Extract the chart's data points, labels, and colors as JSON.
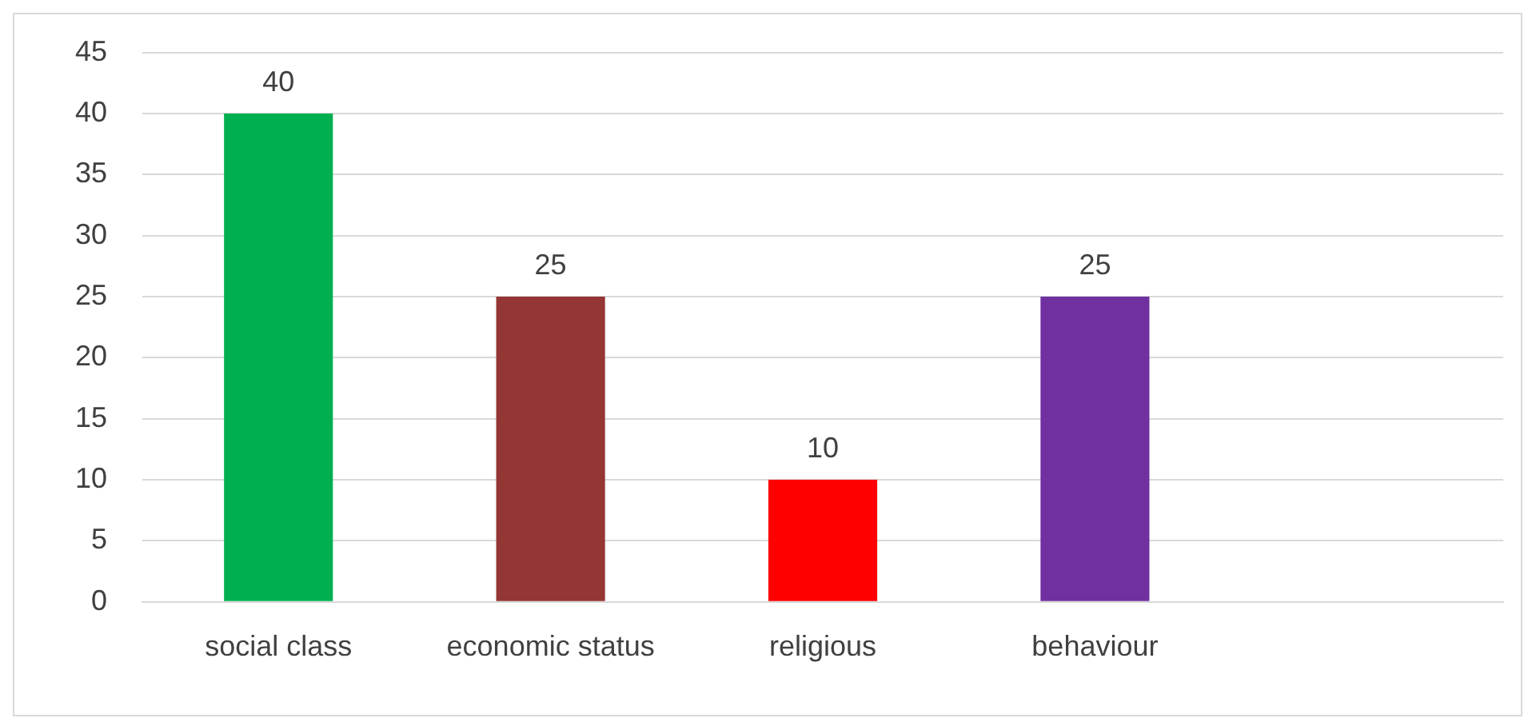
{
  "chart_data": {
    "type": "bar",
    "categories": [
      "social class",
      "economic status",
      "religious",
      "behaviour",
      null
    ],
    "values": [
      40,
      25,
      10,
      25,
      null
    ],
    "colors": [
      "#00b050",
      "#943634",
      "#ff0000",
      "#7030a0",
      "#7030a0"
    ],
    "ylim": [
      0,
      45
    ],
    "yticks": [
      0,
      5,
      10,
      15,
      20,
      25,
      30,
      35,
      40,
      45
    ],
    "grid": "y",
    "data_labels": true,
    "legend": false
  }
}
